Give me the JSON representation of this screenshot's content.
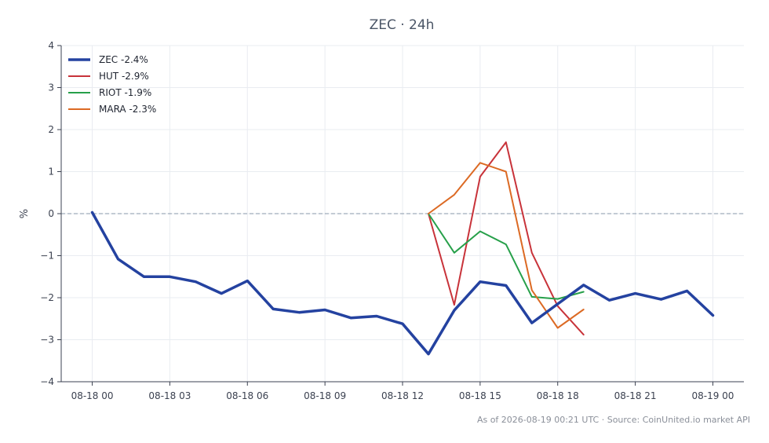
{
  "chart_data": {
    "type": "line",
    "title": "ZEC · 24h",
    "ylabel": "%",
    "xlabel": "",
    "ylim": [
      -4,
      4
    ],
    "yticks": [
      -4,
      -3,
      -2,
      -1,
      0,
      1,
      2,
      3,
      4
    ],
    "ytick_labels": [
      "−4",
      "−3",
      "−2",
      "−1",
      "0",
      "1",
      "2",
      "3",
      "4"
    ],
    "xticks": [
      0,
      3,
      6,
      9,
      12,
      15,
      18,
      21,
      24
    ],
    "xtick_labels": [
      "08-18 00",
      "08-18 03",
      "08-18 06",
      "08-18 09",
      "08-18 12",
      "08-18 15",
      "08-18 18",
      "08-18 21",
      "08-19 00"
    ],
    "xlim": [
      -1.2,
      25.2
    ],
    "grid": true,
    "reference_line": 0,
    "legend_position": "top-left",
    "series": [
      {
        "name": "ZEC -2.4%",
        "color": "#2442a0",
        "x": [
          0,
          1,
          2,
          3,
          4,
          5,
          6,
          7,
          8,
          9,
          10,
          11,
          12,
          13,
          14,
          15,
          16,
          17,
          18,
          19,
          20,
          21,
          22,
          23,
          24
        ],
        "values": [
          0.03,
          -1.08,
          -1.5,
          -1.5,
          -1.62,
          -1.9,
          -1.6,
          -2.27,
          -2.35,
          -2.29,
          -2.48,
          -2.44,
          -2.62,
          -3.34,
          -2.3,
          -1.62,
          -1.71,
          -2.6,
          -2.15,
          -1.7,
          -2.06,
          -1.9,
          -2.04,
          -1.84,
          -2.42
        ]
      },
      {
        "name": "HUT -2.9%",
        "color": "#c8333a",
        "x": [
          13,
          14,
          15,
          16,
          17,
          18,
          19
        ],
        "values": [
          0.0,
          -2.17,
          0.88,
          1.7,
          -0.93,
          -2.2,
          -2.88
        ]
      },
      {
        "name": "RIOT -1.9%",
        "color": "#27a04a",
        "x": [
          13,
          14,
          15,
          16,
          17,
          18,
          19
        ],
        "values": [
          0.0,
          -0.93,
          -0.42,
          -0.73,
          -1.98,
          -2.03,
          -1.86
        ]
      },
      {
        "name": "MARA -2.3%",
        "color": "#dc6a24",
        "x": [
          13,
          14,
          15,
          16,
          17,
          18,
          19
        ],
        "values": [
          0.0,
          0.45,
          1.21,
          1.0,
          -1.82,
          -2.72,
          -2.28
        ]
      }
    ]
  },
  "footer": "As of 2026-08-19 00:21 UTC · Source: CoinUnited.io market API"
}
